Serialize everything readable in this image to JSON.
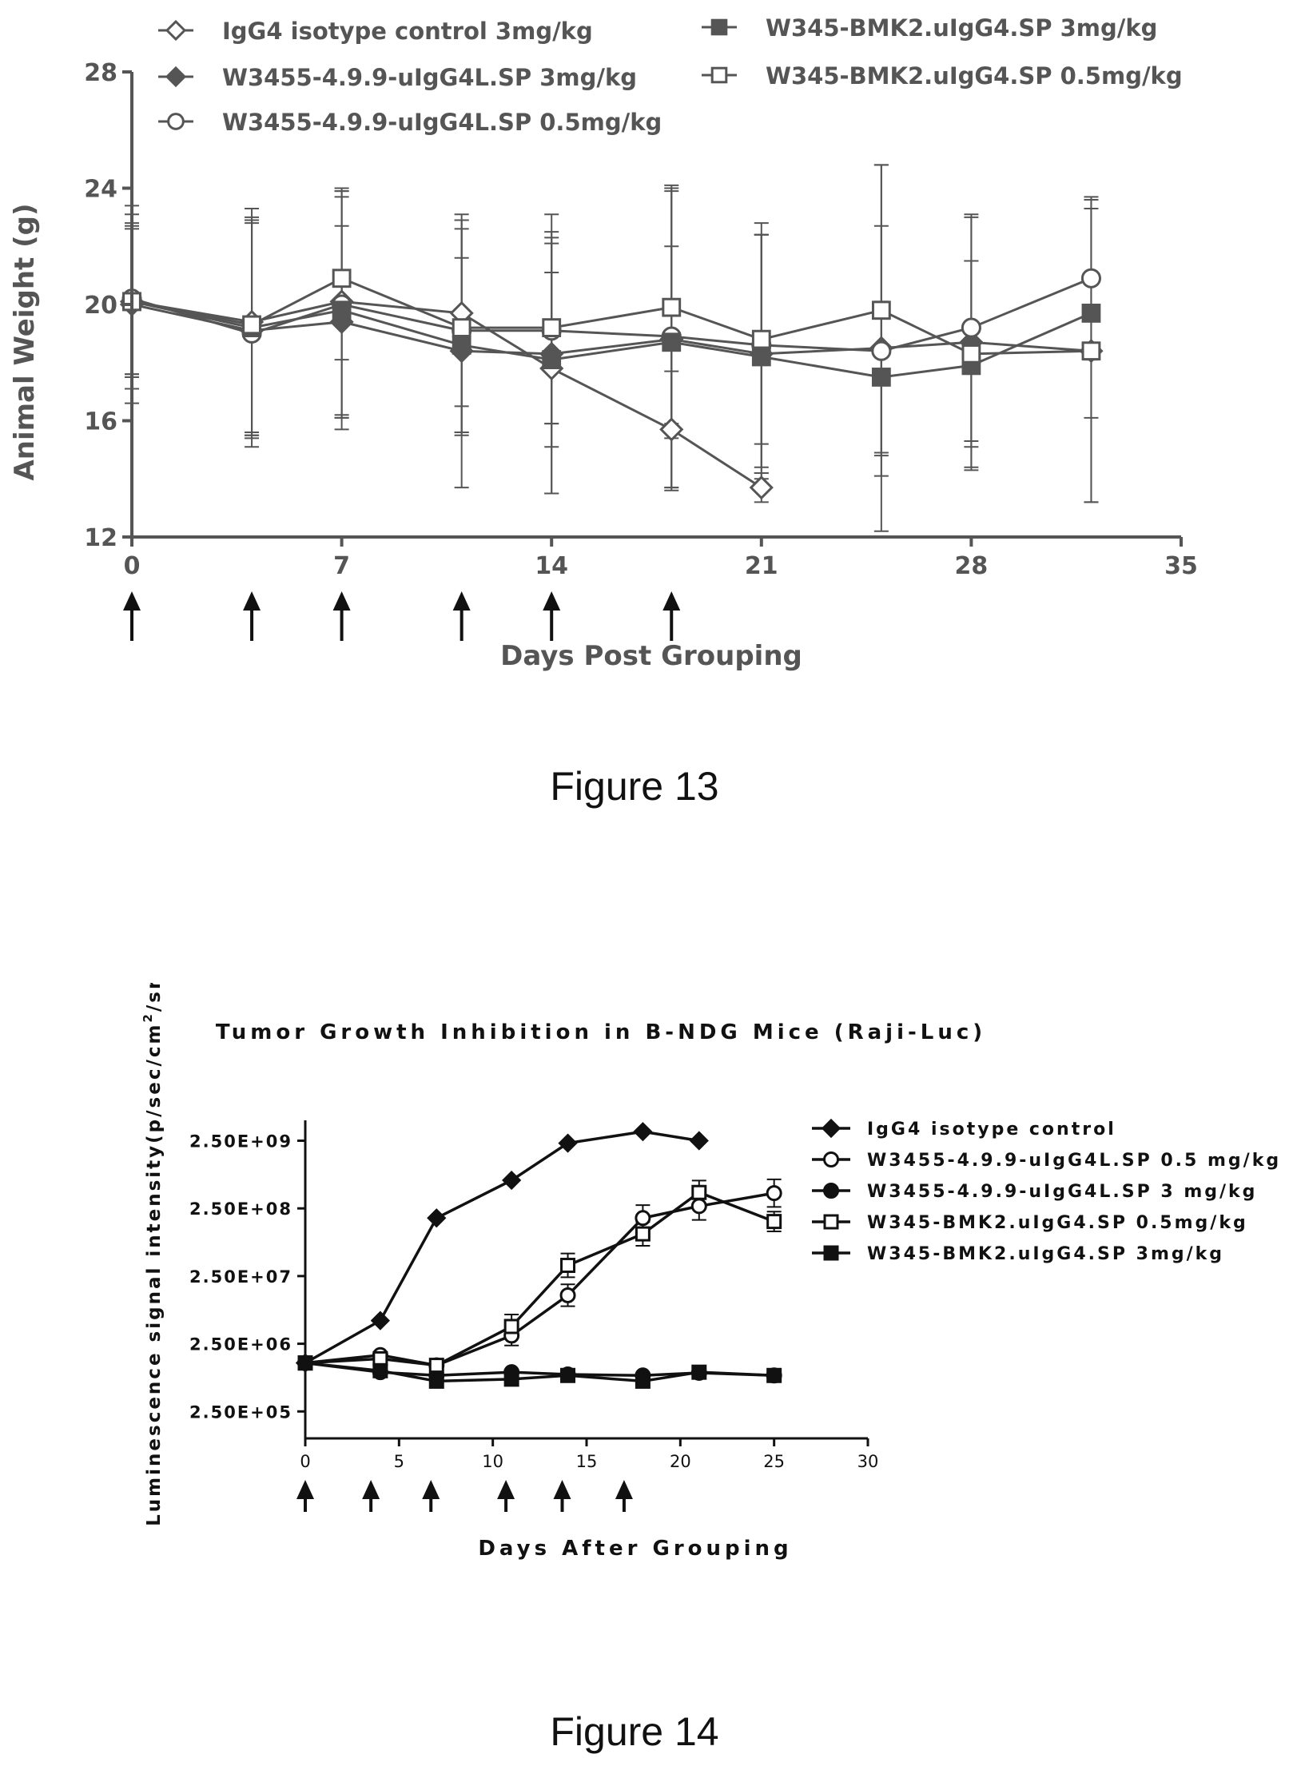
{
  "figures": [
    {
      "caption": "Figure 13"
    },
    {
      "caption": "Figure 14"
    }
  ],
  "colors": {
    "ink": "#111111",
    "gray": "#555555"
  },
  "chart_data": [
    {
      "type": "line",
      "title": "",
      "xlabel": "Days Post Grouping",
      "ylabel": "Animal Weight (g)",
      "xlim": [
        0,
        35
      ],
      "ylim": [
        12,
        28
      ],
      "x_ticks": [
        0,
        7,
        14,
        21,
        28,
        35
      ],
      "x_tick_labels": [
        "0",
        "7",
        "14",
        "21",
        "28",
        "35"
      ],
      "y_ticks": [
        12,
        16,
        20,
        24,
        28
      ],
      "y_tick_labels": [
        "12",
        "16",
        "20",
        "24",
        "28"
      ],
      "dosing_days": [
        0,
        4,
        7,
        11,
        14,
        18
      ],
      "legend_placement": "top, two columns",
      "series": [
        {
          "name": "IgG4 isotype control  3mg/kg",
          "marker": "diamond-open",
          "x": [
            0,
            4,
            7,
            11,
            14,
            18,
            21
          ],
          "y": [
            20.1,
            19.4,
            20.1,
            19.7,
            17.8,
            15.7,
            13.7
          ],
          "err": [
            3.0,
            3.9,
            3.9,
            3.2,
            4.3,
            2.0,
            0.5
          ]
        },
        {
          "name": "W3455-4.9.9-uIgG4L.SP 3mg/kg",
          "marker": "diamond-filled",
          "x": [
            0,
            4,
            7,
            11,
            14,
            18,
            21,
            25,
            28,
            32
          ],
          "y": [
            20.0,
            19.1,
            19.4,
            18.4,
            18.3,
            18.8,
            18.3,
            18.5,
            18.7,
            18.4
          ],
          "err": [
            3.4,
            3.7,
            3.3,
            4.7,
            4.8,
            5.2,
            4.1,
            6.3,
            4.3,
            5.2
          ]
        },
        {
          "name": "W3455-4.9.9-uIgG4L.SP 0.5mg/kg",
          "marker": "circle-open",
          "x": [
            0,
            4,
            7,
            11,
            14,
            18,
            21,
            25,
            28,
            32
          ],
          "y": [
            20.2,
            19.0,
            20.0,
            19.1,
            19.1,
            18.9,
            18.6,
            18.4,
            19.2,
            20.9
          ],
          "err": [
            2.6,
            3.9,
            3.9,
            3.5,
            3.2,
            5.2,
            4.2,
            4.3,
            3.9,
            2.8
          ]
        },
        {
          "name": "W345-BMK2.uIgG4.SP 3mg/kg",
          "marker": "square-filled",
          "x": [
            0,
            4,
            7,
            11,
            14,
            18,
            21,
            25,
            28,
            32
          ],
          "y": [
            20.1,
            19.2,
            19.8,
            18.6,
            18.1,
            18.7,
            18.2,
            17.5,
            17.9,
            19.7
          ],
          "err": [
            2.6,
            3.7,
            4.1,
            3.0,
            3.0,
            3.3,
            4.2,
            2.6,
            3.6,
            3.6
          ]
        },
        {
          "name": "W345-BMK2.uIgG4.SP 0.5mg/kg",
          "marker": "square-open",
          "x": [
            0,
            4,
            7,
            11,
            14,
            18,
            21,
            25,
            28,
            32
          ],
          "y": [
            20.1,
            19.3,
            20.9,
            19.2,
            19.2,
            19.9,
            18.8,
            19.8,
            18.3,
            18.4
          ],
          "err": [
            2.5,
            3.7,
            2.8,
            3.7,
            3.3,
            4.0,
            3.6,
            5.0,
            3.2,
            5.2
          ]
        }
      ]
    },
    {
      "type": "line",
      "title": "Tumor Growth Inhibition in B-NDG Mice (Raji-Luc)",
      "xlabel": "Days After Grouping",
      "ylabel": "Luminescence signal intensity(p/sec/cm",
      "ylabel_sup": "2",
      "ylabel_tail": "/sr)",
      "y_scale": "log",
      "xlim": [
        0,
        30
      ],
      "ylim": [
        100000,
        5000000000
      ],
      "x_ticks": [
        0,
        5,
        10,
        15,
        20,
        25,
        30
      ],
      "x_tick_labels": [
        "0",
        "5",
        "10",
        "15",
        "20",
        "25",
        "30"
      ],
      "y_ticks": [
        250000,
        2500000,
        25000000,
        250000000,
        2500000000
      ],
      "y_tick_labels": [
        "2.50E+05",
        "2.50E+06",
        "2.50E+07",
        "2.50E+08",
        "2.50E+09"
      ],
      "dosing_days": [
        0,
        3.5,
        6.7,
        10.7,
        13.7,
        17
      ],
      "legend_placement": "right",
      "series": [
        {
          "name": "IgG4 isotype control",
          "marker": "diamond-filled",
          "x": [
            0,
            4,
            7,
            11,
            14,
            18,
            21
          ],
          "y": [
            1300000,
            5500000,
            180000000,
            650000000,
            2300000000,
            3400000000,
            2500000000
          ],
          "err_factor": [
            1,
            1,
            1,
            1,
            1,
            1,
            1
          ]
        },
        {
          "name": "W3455-4.9.9-uIgG4L.SP 0.5 mg/kg",
          "marker": "circle-open",
          "x": [
            0,
            4,
            7,
            11,
            14,
            18,
            21,
            25
          ],
          "y": [
            1300000,
            1700000,
            1200000,
            3300000,
            13000000,
            180000000,
            270000000,
            420000000
          ],
          "err_factor": [
            1,
            1.1,
            1.1,
            1.4,
            1.45,
            1.55,
            1.6,
            1.6
          ]
        },
        {
          "name": "W3455-4.9.9-uIgG4L.SP 3 mg/kg",
          "marker": "circle-filled",
          "x": [
            0,
            4,
            7,
            11,
            14,
            18,
            21,
            25
          ],
          "y": [
            1300000,
            950000,
            850000,
            950000,
            880000,
            850000,
            930000,
            850000
          ],
          "err_factor": [
            1,
            1,
            1,
            1,
            1,
            1,
            1,
            1
          ]
        },
        {
          "name": "W345-BMK2.uIgG4.SP 0.5mg/kg",
          "marker": "square-open",
          "x": [
            0,
            4,
            7,
            11,
            14,
            18,
            21,
            25
          ],
          "y": [
            1300000,
            1500000,
            1200000,
            4500000,
            36000000,
            105000000,
            430000000,
            160000000
          ],
          "err_factor": [
            1,
            1.1,
            1.1,
            1.5,
            1.5,
            1.5,
            1.5,
            1.4
          ]
        },
        {
          "name": "W345-BMK2.uIgG4.SP 3mg/kg",
          "marker": "square-filled",
          "x": [
            0,
            4,
            7,
            11,
            14,
            18,
            21,
            25
          ],
          "y": [
            1300000,
            1000000,
            700000,
            750000,
            850000,
            700000,
            950000,
            850000
          ],
          "err_factor": [
            1,
            1,
            1,
            1,
            1,
            1,
            1,
            1
          ]
        }
      ]
    }
  ]
}
